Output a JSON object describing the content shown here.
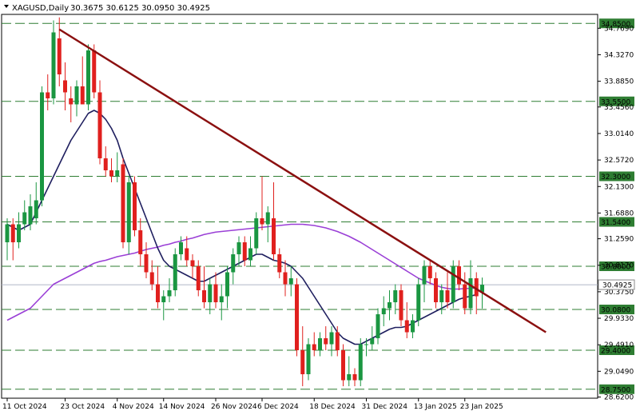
{
  "header": {
    "symbol_label": "XAGUSD,Daily",
    "ohlc_label": "30.3675 30.6125 30.0950 30.4925",
    "menu_icon": "triangle-down-icon"
  },
  "colors": {
    "bull": "#1a9641",
    "bear": "#e0201e",
    "ma_fast": "#1f1f5f",
    "ma_slow": "#9a3fd6",
    "trendline": "#8b1010",
    "level_line": "#2e7d32",
    "level_label_bg": "#2e7d32",
    "current_price_line": "#b0b8c8",
    "current_price_label_bg": "#ffffff"
  },
  "chart_data": {
    "type": "candlestick",
    "title": "XAGUSD,Daily",
    "ylim": [
      28.6,
      35.0
    ],
    "y_ticks": [
      "34.7690",
      "34.3270",
      "33.8850",
      "33.4560",
      "33.0140",
      "32.5720",
      "32.1300",
      "31.6880",
      "31.2590",
      "30.8170",
      "30.3750",
      "29.9330",
      "29.4910",
      "29.0490",
      "28.6200"
    ],
    "x_ticks": [
      "11 Oct 2024",
      "23 Oct 2024",
      "4 Nov 2024",
      "14 Nov 2024",
      "26 Nov 2024",
      "6 Dec 2024",
      "18 Dec 2024",
      "31 Dec 2024",
      "13 Jan 2025",
      "23 Jan 2025"
    ],
    "x_tick_index": [
      0,
      10,
      19,
      27,
      36,
      44,
      53,
      62,
      71,
      79
    ],
    "horizontal_levels": [
      "34.8500",
      "33.5500",
      "32.3000",
      "31.5400",
      "30.8000",
      "30.0800",
      "29.4000",
      "28.7500"
    ],
    "current_price": "30.4925",
    "trendline": {
      "from_index": 9,
      "from_price": 34.75,
      "to_index": 93,
      "to_price": 29.7
    },
    "candles": [
      {
        "o": 31.2,
        "h": 31.6,
        "l": 30.9,
        "c": 31.5
      },
      {
        "o": 31.5,
        "h": 31.6,
        "l": 30.9,
        "c": 31.2
      },
      {
        "o": 31.2,
        "h": 31.7,
        "l": 31.1,
        "c": 31.5
      },
      {
        "o": 31.5,
        "h": 31.9,
        "l": 31.4,
        "c": 31.7
      },
      {
        "o": 31.5,
        "h": 32.0,
        "l": 31.4,
        "c": 31.8
      },
      {
        "o": 31.6,
        "h": 32.2,
        "l": 31.5,
        "c": 31.9
      },
      {
        "o": 31.9,
        "h": 33.8,
        "l": 31.8,
        "c": 33.7
      },
      {
        "o": 33.7,
        "h": 34.0,
        "l": 33.4,
        "c": 33.6
      },
      {
        "o": 33.6,
        "h": 34.9,
        "l": 33.5,
        "c": 34.7
      },
      {
        "o": 34.6,
        "h": 34.95,
        "l": 33.8,
        "c": 34.0
      },
      {
        "o": 33.9,
        "h": 34.2,
        "l": 33.4,
        "c": 33.7
      },
      {
        "o": 33.6,
        "h": 33.8,
        "l": 33.2,
        "c": 33.5
      },
      {
        "o": 33.5,
        "h": 33.9,
        "l": 33.3,
        "c": 33.8
      },
      {
        "o": 33.8,
        "h": 34.3,
        "l": 33.5,
        "c": 33.5
      },
      {
        "o": 33.5,
        "h": 34.5,
        "l": 33.4,
        "c": 34.4
      },
      {
        "o": 34.4,
        "h": 34.5,
        "l": 33.6,
        "c": 33.7
      },
      {
        "o": 33.7,
        "h": 33.9,
        "l": 32.5,
        "c": 32.6
      },
      {
        "o": 32.6,
        "h": 32.8,
        "l": 32.3,
        "c": 32.4
      },
      {
        "o": 32.4,
        "h": 32.6,
        "l": 32.2,
        "c": 32.3
      },
      {
        "o": 32.3,
        "h": 32.7,
        "l": 32.2,
        "c": 32.4
      },
      {
        "o": 32.5,
        "h": 32.6,
        "l": 31.1,
        "c": 31.2
      },
      {
        "o": 31.2,
        "h": 32.3,
        "l": 31.0,
        "c": 32.2
      },
      {
        "o": 32.2,
        "h": 32.3,
        "l": 31.3,
        "c": 31.4
      },
      {
        "o": 31.4,
        "h": 31.6,
        "l": 30.8,
        "c": 31.0
      },
      {
        "o": 31.0,
        "h": 31.2,
        "l": 30.6,
        "c": 30.7
      },
      {
        "o": 30.7,
        "h": 30.9,
        "l": 30.4,
        "c": 30.5
      },
      {
        "o": 30.5,
        "h": 30.8,
        "l": 30.1,
        "c": 30.2
      },
      {
        "o": 30.2,
        "h": 30.4,
        "l": 29.9,
        "c": 30.3
      },
      {
        "o": 30.3,
        "h": 30.6,
        "l": 30.2,
        "c": 30.4
      },
      {
        "o": 30.4,
        "h": 31.1,
        "l": 30.3,
        "c": 31.0
      },
      {
        "o": 31.0,
        "h": 31.3,
        "l": 30.9,
        "c": 31.2
      },
      {
        "o": 31.1,
        "h": 31.3,
        "l": 30.8,
        "c": 30.9
      },
      {
        "o": 30.9,
        "h": 31.0,
        "l": 30.6,
        "c": 30.8
      },
      {
        "o": 30.8,
        "h": 30.9,
        "l": 30.3,
        "c": 30.4
      },
      {
        "o": 30.4,
        "h": 30.8,
        "l": 30.1,
        "c": 30.2
      },
      {
        "o": 30.2,
        "h": 30.6,
        "l": 30.0,
        "c": 30.5
      },
      {
        "o": 30.5,
        "h": 30.7,
        "l": 30.1,
        "c": 30.2
      },
      {
        "o": 30.2,
        "h": 30.5,
        "l": 29.9,
        "c": 30.3
      },
      {
        "o": 30.3,
        "h": 30.8,
        "l": 30.1,
        "c": 30.7
      },
      {
        "o": 30.7,
        "h": 31.1,
        "l": 30.5,
        "c": 31.0
      },
      {
        "o": 31.0,
        "h": 31.3,
        "l": 30.8,
        "c": 31.2
      },
      {
        "o": 31.2,
        "h": 31.3,
        "l": 30.8,
        "c": 30.9
      },
      {
        "o": 30.9,
        "h": 31.3,
        "l": 30.8,
        "c": 31.1
      },
      {
        "o": 31.1,
        "h": 31.7,
        "l": 31.0,
        "c": 31.6
      },
      {
        "o": 31.6,
        "h": 32.3,
        "l": 31.4,
        "c": 31.5
      },
      {
        "o": 31.5,
        "h": 31.8,
        "l": 31.2,
        "c": 31.7
      },
      {
        "o": 31.6,
        "h": 32.2,
        "l": 30.9,
        "c": 31.0
      },
      {
        "o": 31.0,
        "h": 31.1,
        "l": 30.6,
        "c": 30.7
      },
      {
        "o": 30.7,
        "h": 30.9,
        "l": 30.3,
        "c": 30.5
      },
      {
        "o": 30.5,
        "h": 30.8,
        "l": 30.3,
        "c": 30.6
      },
      {
        "o": 30.5,
        "h": 30.6,
        "l": 29.3,
        "c": 29.4
      },
      {
        "o": 29.4,
        "h": 29.8,
        "l": 28.8,
        "c": 29.0
      },
      {
        "o": 29.0,
        "h": 29.6,
        "l": 28.9,
        "c": 29.5
      },
      {
        "o": 29.5,
        "h": 29.7,
        "l": 29.3,
        "c": 29.4
      },
      {
        "o": 29.4,
        "h": 29.7,
        "l": 29.3,
        "c": 29.6
      },
      {
        "o": 29.6,
        "h": 29.8,
        "l": 29.4,
        "c": 29.5
      },
      {
        "o": 29.5,
        "h": 29.8,
        "l": 29.3,
        "c": 29.7
      },
      {
        "o": 29.7,
        "h": 29.8,
        "l": 29.3,
        "c": 29.4
      },
      {
        "o": 29.4,
        "h": 29.5,
        "l": 28.8,
        "c": 28.9
      },
      {
        "o": 28.9,
        "h": 29.3,
        "l": 28.8,
        "c": 29.0
      },
      {
        "o": 29.0,
        "h": 29.1,
        "l": 28.8,
        "c": 28.9
      },
      {
        "o": 28.9,
        "h": 29.6,
        "l": 28.8,
        "c": 29.5
      },
      {
        "o": 29.5,
        "h": 29.6,
        "l": 29.3,
        "c": 29.5
      },
      {
        "o": 29.5,
        "h": 29.8,
        "l": 29.4,
        "c": 29.6
      },
      {
        "o": 29.6,
        "h": 30.1,
        "l": 29.5,
        "c": 30.0
      },
      {
        "o": 30.0,
        "h": 30.3,
        "l": 29.8,
        "c": 30.1
      },
      {
        "o": 30.1,
        "h": 30.4,
        "l": 29.9,
        "c": 30.2
      },
      {
        "o": 30.2,
        "h": 30.5,
        "l": 30.0,
        "c": 30.4
      },
      {
        "o": 30.4,
        "h": 30.5,
        "l": 29.8,
        "c": 29.9
      },
      {
        "o": 29.9,
        "h": 30.2,
        "l": 29.6,
        "c": 29.7
      },
      {
        "o": 29.7,
        "h": 30.0,
        "l": 29.6,
        "c": 29.9
      },
      {
        "o": 29.9,
        "h": 30.6,
        "l": 29.8,
        "c": 30.5
      },
      {
        "o": 30.5,
        "h": 30.9,
        "l": 30.2,
        "c": 30.8
      },
      {
        "o": 30.8,
        "h": 30.9,
        "l": 30.5,
        "c": 30.6
      },
      {
        "o": 30.6,
        "h": 30.7,
        "l": 30.1,
        "c": 30.2
      },
      {
        "o": 30.2,
        "h": 30.5,
        "l": 30.0,
        "c": 30.4
      },
      {
        "o": 30.4,
        "h": 30.7,
        "l": 30.1,
        "c": 30.2
      },
      {
        "o": 30.2,
        "h": 30.9,
        "l": 30.1,
        "c": 30.8
      },
      {
        "o": 30.8,
        "h": 30.9,
        "l": 30.4,
        "c": 30.5
      },
      {
        "o": 30.5,
        "h": 30.7,
        "l": 30.0,
        "c": 30.1
      },
      {
        "o": 30.1,
        "h": 30.9,
        "l": 30.0,
        "c": 30.6
      },
      {
        "o": 30.6,
        "h": 30.7,
        "l": 30.0,
        "c": 30.3
      },
      {
        "o": 30.3675,
        "h": 30.6125,
        "l": 30.095,
        "c": 30.4925
      }
    ],
    "ma_fast": [
      31.5,
      31.45,
      31.4,
      31.45,
      31.5,
      31.7,
      31.9,
      32.1,
      32.3,
      32.5,
      32.7,
      32.9,
      33.05,
      33.2,
      33.35,
      33.4,
      33.35,
      33.25,
      33.1,
      32.9,
      32.6,
      32.35,
      32.1,
      31.85,
      31.6,
      31.35,
      31.1,
      30.9,
      30.8,
      30.75,
      30.7,
      30.65,
      30.6,
      30.55,
      30.55,
      30.6,
      30.65,
      30.7,
      30.75,
      30.8,
      30.85,
      30.9,
      30.95,
      31.0,
      31.0,
      30.95,
      30.9,
      30.88,
      30.85,
      30.8,
      30.7,
      30.6,
      30.45,
      30.3,
      30.15,
      30.0,
      29.85,
      29.7,
      29.6,
      29.55,
      29.5,
      29.5,
      29.55,
      29.6,
      29.65,
      29.7,
      29.75,
      29.78,
      29.78,
      29.8,
      29.85,
      29.9,
      29.95,
      30.0,
      30.05,
      30.1,
      30.15,
      30.2,
      30.25,
      30.28,
      30.3,
      30.33
    ],
    "ma_slow": [
      29.9,
      29.95,
      30.0,
      30.05,
      30.1,
      30.2,
      30.3,
      30.4,
      30.5,
      30.55,
      30.6,
      30.65,
      30.7,
      30.75,
      30.8,
      30.85,
      30.88,
      30.9,
      30.93,
      30.96,
      30.98,
      31.0,
      31.02,
      31.05,
      31.08,
      31.1,
      31.12,
      31.15,
      31.17,
      31.2,
      31.22,
      31.25,
      31.27,
      31.3,
      31.33,
      31.35,
      31.37,
      31.38,
      31.39,
      31.4,
      31.41,
      31.42,
      31.43,
      31.44,
      31.45,
      31.46,
      31.47,
      31.48,
      31.49,
      31.5,
      31.5,
      31.5,
      31.49,
      31.48,
      31.46,
      31.44,
      31.41,
      31.38,
      31.34,
      31.3,
      31.25,
      31.2,
      31.14,
      31.08,
      31.02,
      30.96,
      30.9,
      30.84,
      30.78,
      30.72,
      30.66,
      30.6,
      30.56,
      30.52,
      30.48,
      30.45,
      30.43,
      30.42,
      30.42,
      30.43,
      30.43,
      30.44
    ]
  }
}
